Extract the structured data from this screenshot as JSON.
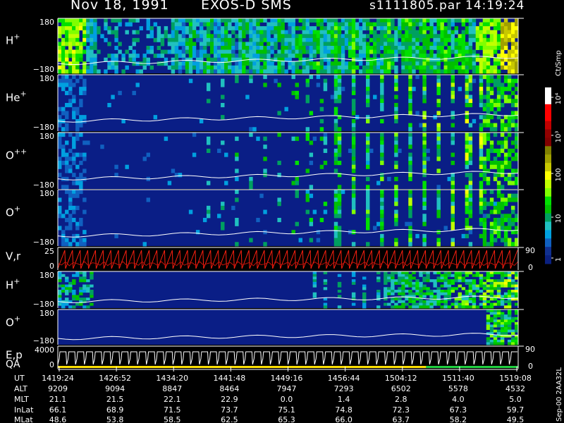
{
  "header": {
    "date": "Nov 18, 1991",
    "instrument": "EXOS-D SMS",
    "file": "s1111805.par",
    "time": "14:19:24"
  },
  "colorbar": {
    "unit": "Ct/Smp",
    "ticks": [
      "10⁴",
      "10³",
      "100",
      "10",
      "1"
    ],
    "colors": [
      "#ffffff",
      "#ffffff",
      "#ff0000",
      "#ff0000",
      "#c00000",
      "#900000",
      "#800000",
      "#808000",
      "#a0a000",
      "#c8c800",
      "#ffff00",
      "#c0ff00",
      "#80ff00",
      "#00e000",
      "#00c000",
      "#00a060",
      "#20c0c0",
      "#00a0e0",
      "#1060c0",
      "#103090",
      "#0a2080"
    ]
  },
  "panels": [
    {
      "id": "h-plus-1",
      "label_main": "H",
      "label_sup": "+",
      "ymax": "180",
      "ymin": "−180",
      "kind": "spec",
      "profile": "h1"
    },
    {
      "id": "he-plus",
      "label_main": "He",
      "label_sup": "+",
      "ymax": "180",
      "ymin": "−180",
      "kind": "spec",
      "profile": "he"
    },
    {
      "id": "o-plusplus",
      "label_main": "O",
      "label_sup": "++",
      "ymax": "180",
      "ymin": "−180",
      "kind": "spec",
      "profile": "opp"
    },
    {
      "id": "o-plus-1",
      "label_main": "O",
      "label_sup": "+",
      "ymax": "180",
      "ymin": "−180",
      "kind": "spec",
      "profile": "op"
    },
    {
      "id": "v-r",
      "label_main": "V,r",
      "label_sup": "",
      "ymax": "25",
      "ymin": "0",
      "kind": "line",
      "right_label": "90",
      "right_label2": "0"
    },
    {
      "id": "h-plus-2",
      "label_main": "H",
      "label_sup": "+",
      "ymax": "180",
      "ymin": "−180",
      "kind": "spec",
      "profile": "h2"
    },
    {
      "id": "o-plus-2",
      "label_main": "O",
      "label_sup": "+",
      "ymax": "180",
      "ymin": "−180",
      "kind": "spec",
      "profile": "o2"
    },
    {
      "id": "e-p-qa",
      "label_main": "E,p",
      "label_line2": "QA",
      "ymax": "4000",
      "ymin": "0",
      "kind": "ep",
      "right_label": "90",
      "right_label2": "0"
    }
  ],
  "footer": {
    "row_labels": [
      "UT",
      "ALT",
      "MLT",
      "InLat",
      "MLat"
    ],
    "columns": [
      [
        "1419:24",
        "9209",
        "21.1",
        "66.1",
        "48.6"
      ],
      [
        "1426:52",
        "9094",
        "21.5",
        "68.9",
        "53.8"
      ],
      [
        "1434:20",
        "8847",
        "22.1",
        "71.5",
        "58.5"
      ],
      [
        "1441:48",
        "8464",
        "22.9",
        "73.7",
        "62.5"
      ],
      [
        "1449:16",
        "7947",
        "0.0",
        "75.1",
        "65.3"
      ],
      [
        "1456:44",
        "7293",
        "1.4",
        "74.8",
        "66.0"
      ],
      [
        "1504:12",
        "6502",
        "2.8",
        "72.3",
        "63.7"
      ],
      [
        "1511:40",
        "5578",
        "4.0",
        "67.3",
        "58.2"
      ],
      [
        "1519:08",
        "4532",
        "5.0",
        "59.7",
        "49.5"
      ]
    ],
    "side_note": "Sep-00 2AA32L"
  },
  "chart_data": {
    "type": "heatmap",
    "title": "Nov 18, 1991 EXOS-D SMS",
    "x_ticks": [
      "1419:24",
      "1426:52",
      "1434:20",
      "1441:48",
      "1449:16",
      "1456:44",
      "1504:12",
      "1511:40",
      "1519:08"
    ],
    "ylim_spectrogram": [
      -180,
      180
    ],
    "ylim_vr": [
      0,
      25
    ],
    "ylim_ep": [
      0,
      4000
    ],
    "colorbar_unit": "Ct/Smp",
    "colorbar_scale": "log",
    "colorbar_range": [
      1,
      10000
    ]
  }
}
